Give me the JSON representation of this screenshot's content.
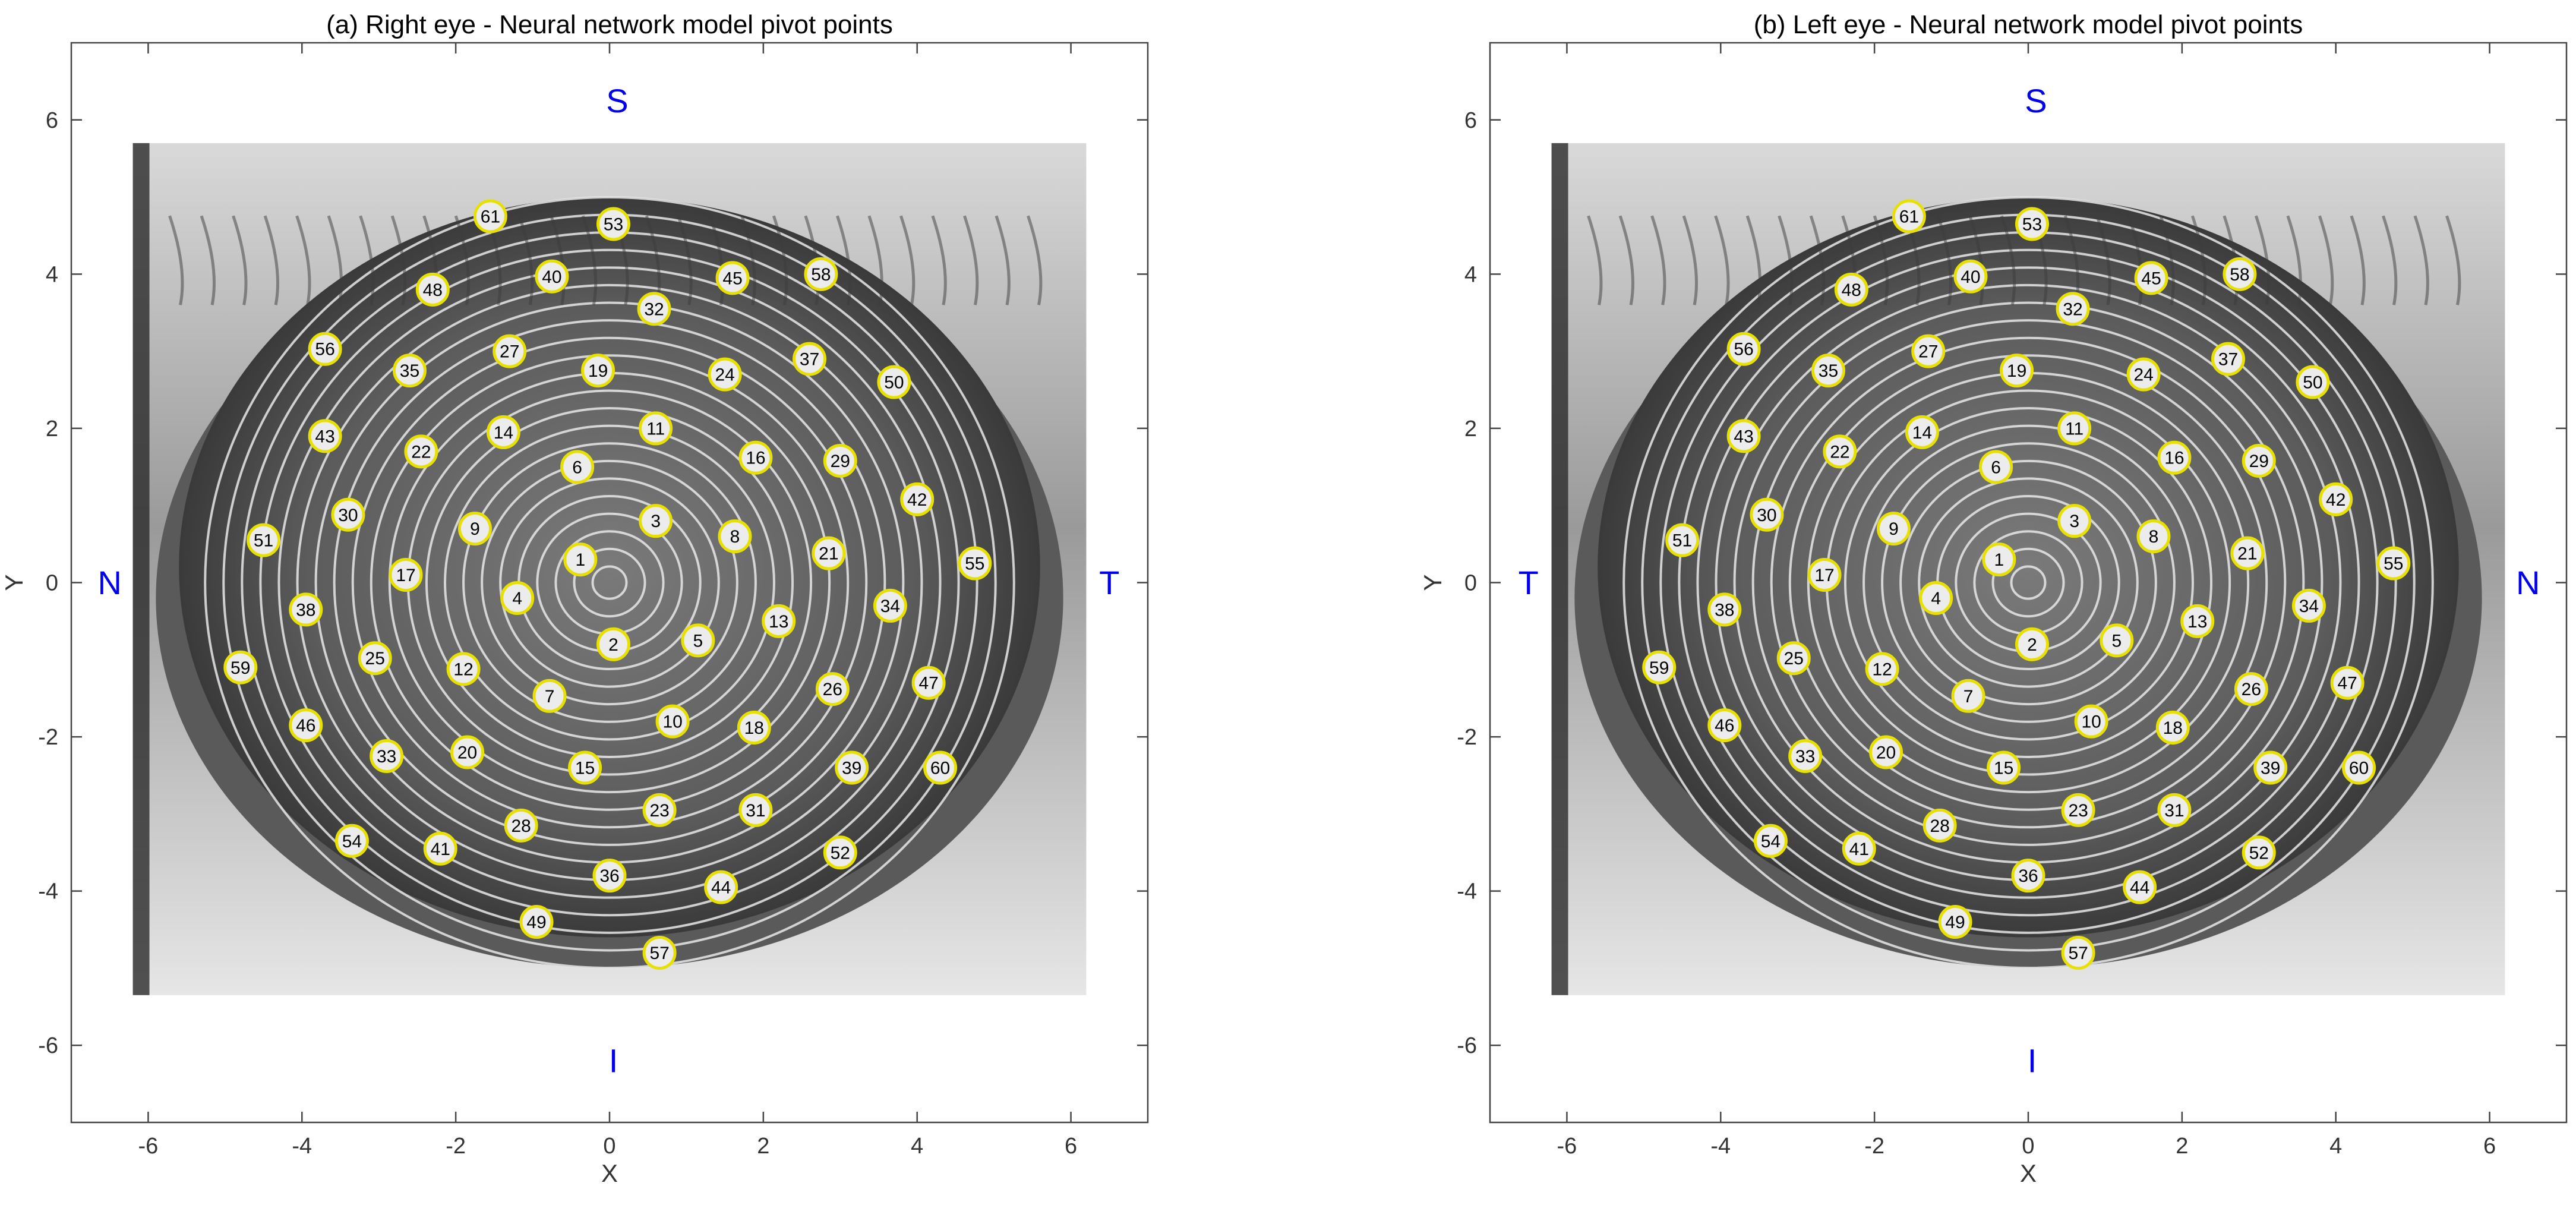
{
  "chart_data": [
    {
      "type": "scatter",
      "title": "(a) Right eye - Neural network model pivot points",
      "xlabel": "X",
      "ylabel": "Y",
      "xlim": [
        -7,
        7
      ],
      "ylim": [
        -7,
        7
      ],
      "xticks": [
        "-6",
        "-4",
        "-2",
        "0",
        "2",
        "4",
        "6"
      ],
      "yticks": [
        "6",
        "4",
        "2",
        "0",
        "-2",
        "-4",
        "-6"
      ],
      "directions": {
        "top": "S",
        "bottom": "I",
        "left": "N",
        "right": "T"
      },
      "background": "grayscale photograph of an eye with concentric ring reflections",
      "point_color": "#e8e000",
      "points": [
        {
          "id": "1",
          "x": -0.38,
          "y": 0.3
        },
        {
          "id": "2",
          "x": 0.05,
          "y": -0.8
        },
        {
          "id": "3",
          "x": 0.6,
          "y": 0.8
        },
        {
          "id": "4",
          "x": -1.2,
          "y": -0.2
        },
        {
          "id": "5",
          "x": 1.15,
          "y": -0.75
        },
        {
          "id": "6",
          "x": -0.42,
          "y": 1.5
        },
        {
          "id": "7",
          "x": -0.78,
          "y": -1.47
        },
        {
          "id": "8",
          "x": 1.63,
          "y": 0.6
        },
        {
          "id": "9",
          "x": -1.75,
          "y": 0.7
        },
        {
          "id": "10",
          "x": 0.82,
          "y": -1.8
        },
        {
          "id": "11",
          "x": 0.6,
          "y": 2.0
        },
        {
          "id": "12",
          "x": -1.9,
          "y": -1.12
        },
        {
          "id": "13",
          "x": 2.2,
          "y": -0.5
        },
        {
          "id": "14",
          "x": -1.38,
          "y": 1.95
        },
        {
          "id": "15",
          "x": -0.32,
          "y": -2.4
        },
        {
          "id": "16",
          "x": 1.9,
          "y": 1.62
        },
        {
          "id": "17",
          "x": -2.65,
          "y": 0.1
        },
        {
          "id": "18",
          "x": 1.88,
          "y": -1.88
        },
        {
          "id": "19",
          "x": -0.15,
          "y": 2.75
        },
        {
          "id": "20",
          "x": -1.85,
          "y": -2.2
        },
        {
          "id": "21",
          "x": 2.85,
          "y": 0.38
        },
        {
          "id": "22",
          "x": -2.45,
          "y": 1.7
        },
        {
          "id": "23",
          "x": 0.65,
          "y": -2.95
        },
        {
          "id": "24",
          "x": 1.5,
          "y": 2.7
        },
        {
          "id": "25",
          "x": -3.05,
          "y": -0.98
        },
        {
          "id": "26",
          "x": 2.9,
          "y": -1.38
        },
        {
          "id": "27",
          "x": -1.3,
          "y": 3.0
        },
        {
          "id": "28",
          "x": -1.15,
          "y": -3.15
        },
        {
          "id": "29",
          "x": 3.0,
          "y": 1.58
        },
        {
          "id": "30",
          "x": -3.4,
          "y": 0.88
        },
        {
          "id": "31",
          "x": 1.9,
          "y": -2.95
        },
        {
          "id": "32",
          "x": 0.58,
          "y": 3.55
        },
        {
          "id": "33",
          "x": -2.9,
          "y": -2.25
        },
        {
          "id": "34",
          "x": 3.65,
          "y": -0.3
        },
        {
          "id": "35",
          "x": -2.6,
          "y": 2.75
        },
        {
          "id": "36",
          "x": 0.0,
          "y": -3.8
        },
        {
          "id": "37",
          "x": 2.6,
          "y": 2.9
        },
        {
          "id": "38",
          "x": -3.95,
          "y": -0.35
        },
        {
          "id": "39",
          "x": 3.15,
          "y": -2.4
        },
        {
          "id": "40",
          "x": -0.75,
          "y": 3.97
        },
        {
          "id": "41",
          "x": -2.2,
          "y": -3.45
        },
        {
          "id": "42",
          "x": 4.0,
          "y": 1.08
        },
        {
          "id": "43",
          "x": -3.7,
          "y": 1.9
        },
        {
          "id": "44",
          "x": 1.45,
          "y": -3.95
        },
        {
          "id": "45",
          "x": 1.6,
          "y": 3.95
        },
        {
          "id": "46",
          "x": -3.95,
          "y": -1.85
        },
        {
          "id": "47",
          "x": 4.15,
          "y": -1.3
        },
        {
          "id": "48",
          "x": -2.3,
          "y": 3.8
        },
        {
          "id": "49",
          "x": -0.95,
          "y": -4.4
        },
        {
          "id": "50",
          "x": 3.7,
          "y": 2.6
        },
        {
          "id": "51",
          "x": -4.5,
          "y": 0.55
        },
        {
          "id": "52",
          "x": 3.0,
          "y": -3.5
        },
        {
          "id": "53",
          "x": 0.05,
          "y": 4.65
        },
        {
          "id": "54",
          "x": -3.35,
          "y": -3.35
        },
        {
          "id": "55",
          "x": 4.75,
          "y": 0.25
        },
        {
          "id": "56",
          "x": -3.7,
          "y": 3.03
        },
        {
          "id": "57",
          "x": 0.65,
          "y": -4.8
        },
        {
          "id": "58",
          "x": 2.75,
          "y": 4.0
        },
        {
          "id": "59",
          "x": -4.8,
          "y": -1.1
        },
        {
          "id": "60",
          "x": 4.3,
          "y": -2.4
        },
        {
          "id": "61",
          "x": -1.55,
          "y": 4.75
        }
      ]
    },
    {
      "type": "scatter",
      "title": "(b) Left eye - Neural network model pivot points",
      "xlabel": "X",
      "ylabel": "Y",
      "xlim": [
        -7,
        7
      ],
      "ylim": [
        -7,
        7
      ],
      "xticks": [
        "-6",
        "-4",
        "-2",
        "0",
        "2",
        "4",
        "6"
      ],
      "yticks": [
        "6",
        "4",
        "2",
        "0",
        "-2",
        "-4",
        "-6"
      ],
      "directions": {
        "top": "S",
        "bottom": "I",
        "left": "T",
        "right": "N"
      },
      "background": "grayscale photograph of an eye with concentric ring reflections",
      "point_color": "#e8e000",
      "points": [
        {
          "id": "1",
          "x": -0.38,
          "y": 0.3
        },
        {
          "id": "2",
          "x": 0.05,
          "y": -0.8
        },
        {
          "id": "3",
          "x": 0.6,
          "y": 0.8
        },
        {
          "id": "4",
          "x": -1.2,
          "y": -0.2
        },
        {
          "id": "5",
          "x": 1.15,
          "y": -0.75
        },
        {
          "id": "6",
          "x": -0.42,
          "y": 1.5
        },
        {
          "id": "7",
          "x": -0.78,
          "y": -1.47
        },
        {
          "id": "8",
          "x": 1.63,
          "y": 0.6
        },
        {
          "id": "9",
          "x": -1.75,
          "y": 0.7
        },
        {
          "id": "10",
          "x": 0.82,
          "y": -1.8
        },
        {
          "id": "11",
          "x": 0.6,
          "y": 2.0
        },
        {
          "id": "12",
          "x": -1.9,
          "y": -1.12
        },
        {
          "id": "13",
          "x": 2.2,
          "y": -0.5
        },
        {
          "id": "14",
          "x": -1.38,
          "y": 1.95
        },
        {
          "id": "15",
          "x": -0.32,
          "y": -2.4
        },
        {
          "id": "16",
          "x": 1.9,
          "y": 1.62
        },
        {
          "id": "17",
          "x": -2.65,
          "y": 0.1
        },
        {
          "id": "18",
          "x": 1.88,
          "y": -1.88
        },
        {
          "id": "19",
          "x": -0.15,
          "y": 2.75
        },
        {
          "id": "20",
          "x": -1.85,
          "y": -2.2
        },
        {
          "id": "21",
          "x": 2.85,
          "y": 0.38
        },
        {
          "id": "22",
          "x": -2.45,
          "y": 1.7
        },
        {
          "id": "23",
          "x": 0.65,
          "y": -2.95
        },
        {
          "id": "24",
          "x": 1.5,
          "y": 2.7
        },
        {
          "id": "25",
          "x": -3.05,
          "y": -0.98
        },
        {
          "id": "26",
          "x": 2.9,
          "y": -1.38
        },
        {
          "id": "27",
          "x": -1.3,
          "y": 3.0
        },
        {
          "id": "28",
          "x": -1.15,
          "y": -3.15
        },
        {
          "id": "29",
          "x": 3.0,
          "y": 1.58
        },
        {
          "id": "30",
          "x": -3.4,
          "y": 0.88
        },
        {
          "id": "31",
          "x": 1.9,
          "y": -2.95
        },
        {
          "id": "32",
          "x": 0.58,
          "y": 3.55
        },
        {
          "id": "33",
          "x": -2.9,
          "y": -2.25
        },
        {
          "id": "34",
          "x": 3.65,
          "y": -0.3
        },
        {
          "id": "35",
          "x": -2.6,
          "y": 2.75
        },
        {
          "id": "36",
          "x": 0.0,
          "y": -3.8
        },
        {
          "id": "37",
          "x": 2.6,
          "y": 2.9
        },
        {
          "id": "38",
          "x": -3.95,
          "y": -0.35
        },
        {
          "id": "39",
          "x": 3.15,
          "y": -2.4
        },
        {
          "id": "40",
          "x": -0.75,
          "y": 3.97
        },
        {
          "id": "41",
          "x": -2.2,
          "y": -3.45
        },
        {
          "id": "42",
          "x": 4.0,
          "y": 1.08
        },
        {
          "id": "43",
          "x": -3.7,
          "y": 1.9
        },
        {
          "id": "44",
          "x": 1.45,
          "y": -3.95
        },
        {
          "id": "45",
          "x": 1.6,
          "y": 3.95
        },
        {
          "id": "46",
          "x": -3.95,
          "y": -1.85
        },
        {
          "id": "47",
          "x": 4.15,
          "y": -1.3
        },
        {
          "id": "48",
          "x": -2.3,
          "y": 3.8
        },
        {
          "id": "49",
          "x": -0.95,
          "y": -4.4
        },
        {
          "id": "50",
          "x": 3.7,
          "y": 2.6
        },
        {
          "id": "51",
          "x": -4.5,
          "y": 0.55
        },
        {
          "id": "52",
          "x": 3.0,
          "y": -3.5
        },
        {
          "id": "53",
          "x": 0.05,
          "y": 4.65
        },
        {
          "id": "54",
          "x": -3.35,
          "y": -3.35
        },
        {
          "id": "55",
          "x": 4.75,
          "y": 0.25
        },
        {
          "id": "56",
          "x": -3.7,
          "y": 3.03
        },
        {
          "id": "57",
          "x": 0.65,
          "y": -4.8
        },
        {
          "id": "58",
          "x": 2.75,
          "y": 4.0
        },
        {
          "id": "59",
          "x": -4.8,
          "y": -1.1
        },
        {
          "id": "60",
          "x": 4.3,
          "y": -2.4
        },
        {
          "id": "61",
          "x": -1.55,
          "y": 4.75
        }
      ]
    }
  ]
}
